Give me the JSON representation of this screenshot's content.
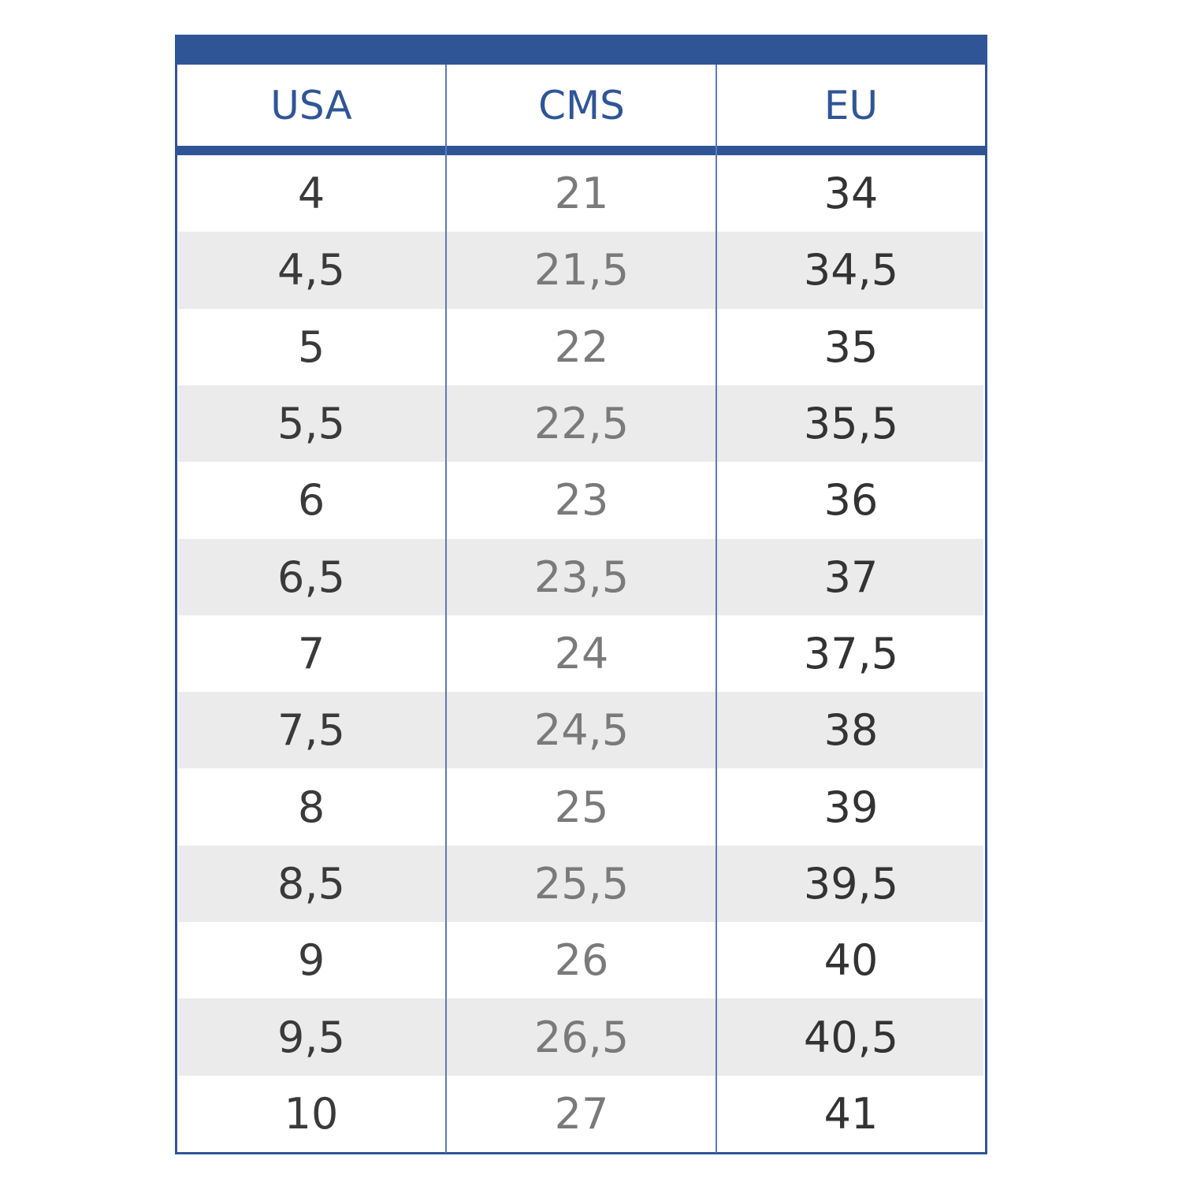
{
  "table": {
    "header": [
      "USA",
      "CMS",
      "EU"
    ],
    "rows": [
      [
        "4",
        "21",
        "34"
      ],
      [
        "4,5",
        "21,5",
        "34,5"
      ],
      [
        "5",
        "22",
        "35"
      ],
      [
        "5,5",
        "22,5",
        "35,5"
      ],
      [
        "6",
        "23",
        "36"
      ],
      [
        "6,5",
        "23,5",
        "37"
      ],
      [
        "7",
        "24",
        "37,5"
      ],
      [
        "7,5",
        "24,5",
        "38"
      ],
      [
        "8",
        "25",
        "39"
      ],
      [
        "8,5",
        "25,5",
        "39,5"
      ],
      [
        "9",
        "26",
        "40"
      ],
      [
        "9,5",
        "26,5",
        "40,5"
      ],
      [
        "10",
        "27",
        "41"
      ]
    ]
  }
}
